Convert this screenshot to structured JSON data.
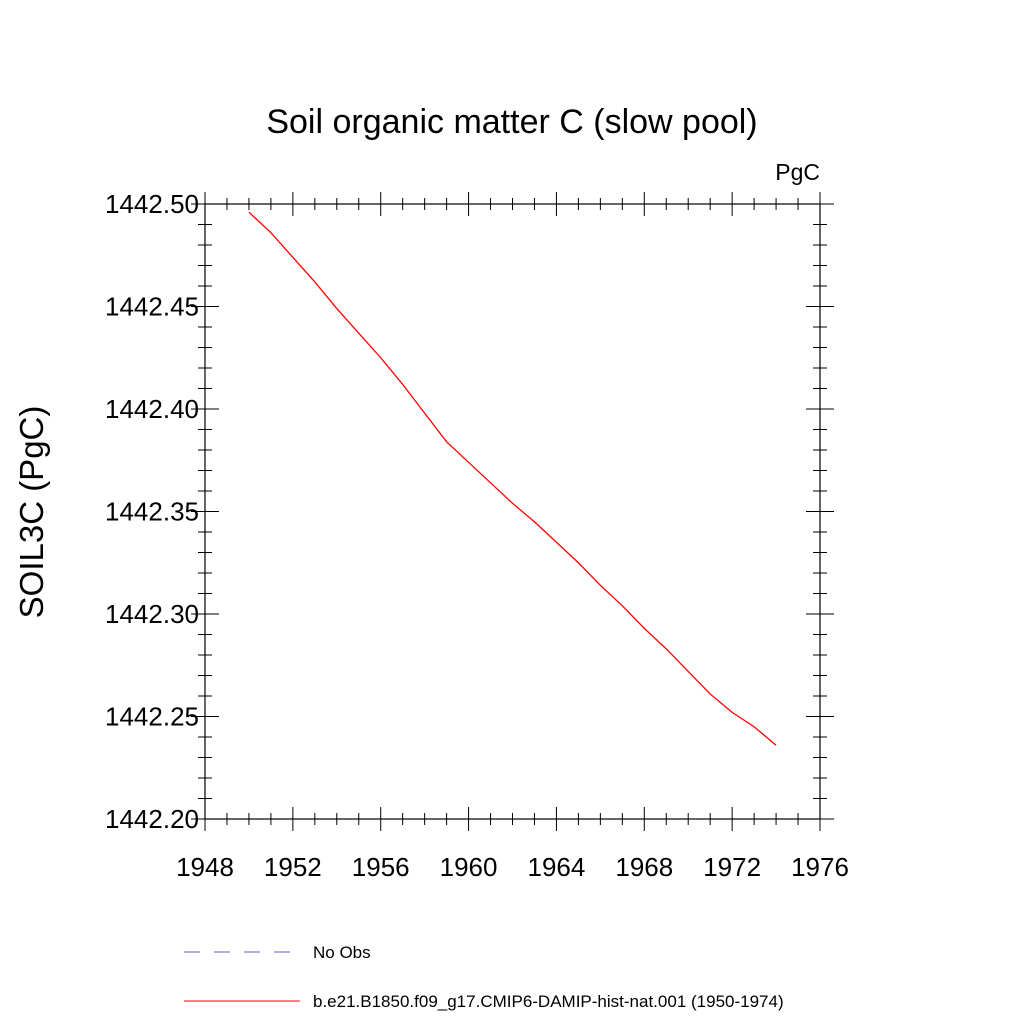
{
  "chart_data": {
    "type": "line",
    "title": "Soil organic matter C (slow pool)",
    "units_label": "PgC",
    "ylabel": "SOIL3C  (PgC)",
    "xlabel": "",
    "xlim": [
      1948,
      1976
    ],
    "ylim": [
      1442.2,
      1442.5
    ],
    "x_ticks": [
      1948,
      1952,
      1956,
      1960,
      1964,
      1968,
      1972,
      1976
    ],
    "y_ticks": [
      1442.2,
      1442.25,
      1442.3,
      1442.35,
      1442.4,
      1442.45,
      1442.5
    ],
    "x_tick_labels": [
      "1948",
      "1952",
      "1956",
      "1960",
      "1964",
      "1968",
      "1972",
      "1976"
    ],
    "y_tick_labels": [
      "1442.20",
      "1442.25",
      "1442.30",
      "1442.35",
      "1442.40",
      "1442.45",
      "1442.50"
    ],
    "grid": false,
    "legend_position": "bottom",
    "series": [
      {
        "name": "b.e21.B1850.f09_g17.CMIP6-DAMIP-hist-nat.001 (1950-1974)",
        "color": "#ff0000",
        "dash": "solid",
        "x": [
          1950,
          1951,
          1952,
          1953,
          1954,
          1955,
          1956,
          1957,
          1958,
          1959,
          1960,
          1961,
          1962,
          1963,
          1964,
          1965,
          1966,
          1967,
          1968,
          1969,
          1970,
          1971,
          1972,
          1973,
          1974
        ],
        "y": [
          1442.496,
          1442.486,
          1442.474,
          1442.462,
          1442.449,
          1442.437,
          1442.425,
          1442.412,
          1442.398,
          1442.384,
          1442.374,
          1442.364,
          1442.354,
          1442.345,
          1442.335,
          1442.325,
          1442.314,
          1442.304,
          1442.293,
          1442.283,
          1442.272,
          1442.261,
          1442.252,
          1442.245,
          1442.236
        ]
      }
    ],
    "legend": [
      {
        "label": "No Obs",
        "color": "#6060c0",
        "dash": "dashed"
      },
      {
        "label": "b.e21.B1850.f09_g17.CMIP6-DAMIP-hist-nat.001 (1950-1974)",
        "color": "#ff0000",
        "dash": "solid"
      }
    ]
  }
}
